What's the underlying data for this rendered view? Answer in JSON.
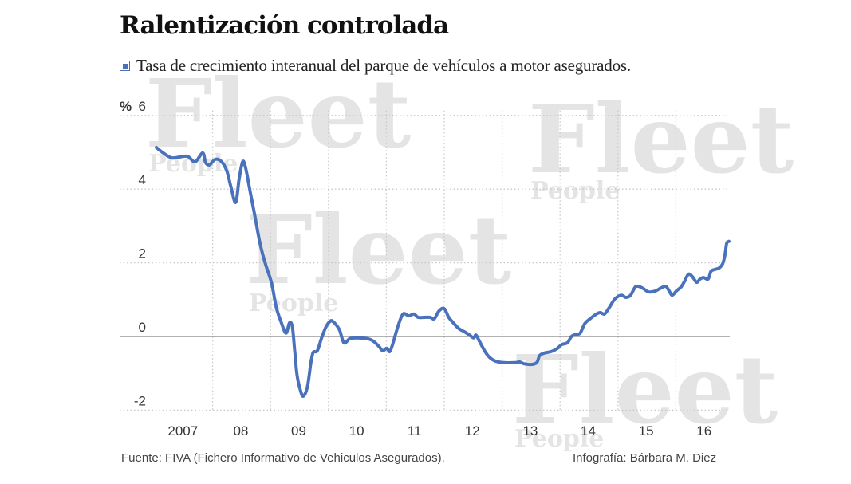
{
  "header": {
    "title": "Ralentización controlada",
    "legend_label": "Tasa de crecimiento interanual del parque de vehículos a motor asegurados."
  },
  "footer": {
    "source": "Fuente: FIVA (Fichero Informativo de Vehiculos Asegurados).",
    "credit": "Infografía: Bárbara M. Diez"
  },
  "watermark": {
    "word1": "Fleet",
    "word2": "People"
  },
  "colors": {
    "line": "#4a72bc",
    "grid": "#c8c8c8",
    "zero_line": "#999999",
    "watermark": "#e4e4e4"
  },
  "chart_data": {
    "type": "line",
    "title": "Ralentización controlada",
    "subtitle": "Tasa de crecimiento interanual del parque de vehículos a motor asegurados.",
    "xlabel": "",
    "ylabel": "%",
    "ylim": [
      -2,
      6
    ],
    "xlim": [
      2006.4,
      2017.0
    ],
    "y_ticks": [
      6,
      4,
      2,
      0,
      -2
    ],
    "y_tick_labels": [
      "6",
      "4",
      "2",
      "0",
      "-2"
    ],
    "y_unit_label": "%",
    "x_ticks": [
      2007,
      2008,
      2009,
      2010,
      2011,
      2012,
      2013,
      2014,
      2015,
      2016
    ],
    "x_tick_labels": [
      "2007",
      "08",
      "09",
      "10",
      "11",
      "12",
      "13",
      "14",
      "15",
      "16"
    ],
    "grid": true,
    "legend": "top-left",
    "series": [
      {
        "name": "Tasa de crecimiento interanual del parque de vehículos a motor asegurados",
        "x": [
          2007.0,
          2007.12,
          2007.26,
          2007.4,
          2007.54,
          2007.67,
          2007.8,
          2007.85,
          2007.92,
          2008.02,
          2008.13,
          2008.22,
          2008.29,
          2008.37,
          2008.43,
          2008.49,
          2008.54,
          2008.62,
          2008.7,
          2008.79,
          2008.88,
          2008.99,
          2009.07,
          2009.16,
          2009.24,
          2009.3,
          2009.35,
          2009.39,
          2009.43,
          2009.49,
          2009.54,
          2009.61,
          2009.67,
          2009.71,
          2009.78,
          2009.85,
          2009.93,
          2010.0,
          2010.05,
          2010.16,
          2010.24,
          2010.34,
          2010.45,
          2010.65,
          2010.75,
          2010.85,
          2010.91,
          2010.98,
          2011.03,
          2011.08,
          2011.17,
          2011.26,
          2011.36,
          2011.45,
          2011.52,
          2011.63,
          2011.73,
          2011.8,
          2011.88,
          2011.97,
          2012.05,
          2012.13,
          2012.22,
          2012.32,
          2012.41,
          2012.48,
          2012.52,
          2012.58,
          2012.67,
          2012.75,
          2012.86,
          2013.0,
          2013.2,
          2013.27,
          2013.35,
          2013.47,
          2013.57,
          2013.62,
          2013.7,
          2013.82,
          2013.93,
          2014.0,
          2014.1,
          2014.17,
          2014.25,
          2014.32,
          2014.4,
          2014.49,
          2014.6,
          2014.67,
          2014.74,
          2014.82,
          2014.92,
          2015.03,
          2015.11,
          2015.19,
          2015.27,
          2015.33,
          2015.41,
          2015.5,
          2015.61,
          2015.72,
          2015.8,
          2015.86,
          2015.91,
          2015.99,
          2016.06,
          2016.12,
          2016.19,
          2016.26,
          2016.33,
          2016.39,
          2016.45,
          2016.53,
          2016.58,
          2016.65,
          2016.72,
          2016.78,
          2016.82,
          2016.85,
          2016.89
        ],
        "values": [
          5.13,
          4.98,
          4.85,
          4.87,
          4.89,
          4.74,
          4.98,
          4.72,
          4.66,
          4.81,
          4.74,
          4.48,
          4.05,
          3.64,
          4.27,
          4.74,
          4.59,
          3.94,
          3.29,
          2.53,
          1.99,
          1.45,
          0.8,
          0.37,
          0.09,
          0.37,
          0.26,
          -0.39,
          -1.04,
          -1.47,
          -1.62,
          -1.36,
          -0.71,
          -0.43,
          -0.39,
          -0.06,
          0.26,
          0.41,
          0.41,
          0.19,
          -0.17,
          -0.06,
          -0.04,
          -0.06,
          -0.13,
          -0.28,
          -0.39,
          -0.32,
          -0.41,
          -0.22,
          0.26,
          0.61,
          0.56,
          0.61,
          0.52,
          0.52,
          0.52,
          0.48,
          0.69,
          0.76,
          0.52,
          0.37,
          0.22,
          0.13,
          0.04,
          -0.04,
          0.04,
          -0.13,
          -0.39,
          -0.56,
          -0.67,
          -0.71,
          -0.71,
          -0.69,
          -0.74,
          -0.76,
          -0.71,
          -0.52,
          -0.45,
          -0.41,
          -0.32,
          -0.22,
          -0.17,
          0.0,
          0.06,
          0.09,
          0.35,
          0.48,
          0.61,
          0.65,
          0.61,
          0.78,
          1.02,
          1.12,
          1.06,
          1.12,
          1.34,
          1.36,
          1.3,
          1.21,
          1.23,
          1.32,
          1.36,
          1.23,
          1.12,
          1.25,
          1.34,
          1.49,
          1.69,
          1.62,
          1.47,
          1.56,
          1.6,
          1.56,
          1.77,
          1.82,
          1.86,
          1.97,
          2.21,
          2.53,
          2.58
        ]
      }
    ]
  }
}
